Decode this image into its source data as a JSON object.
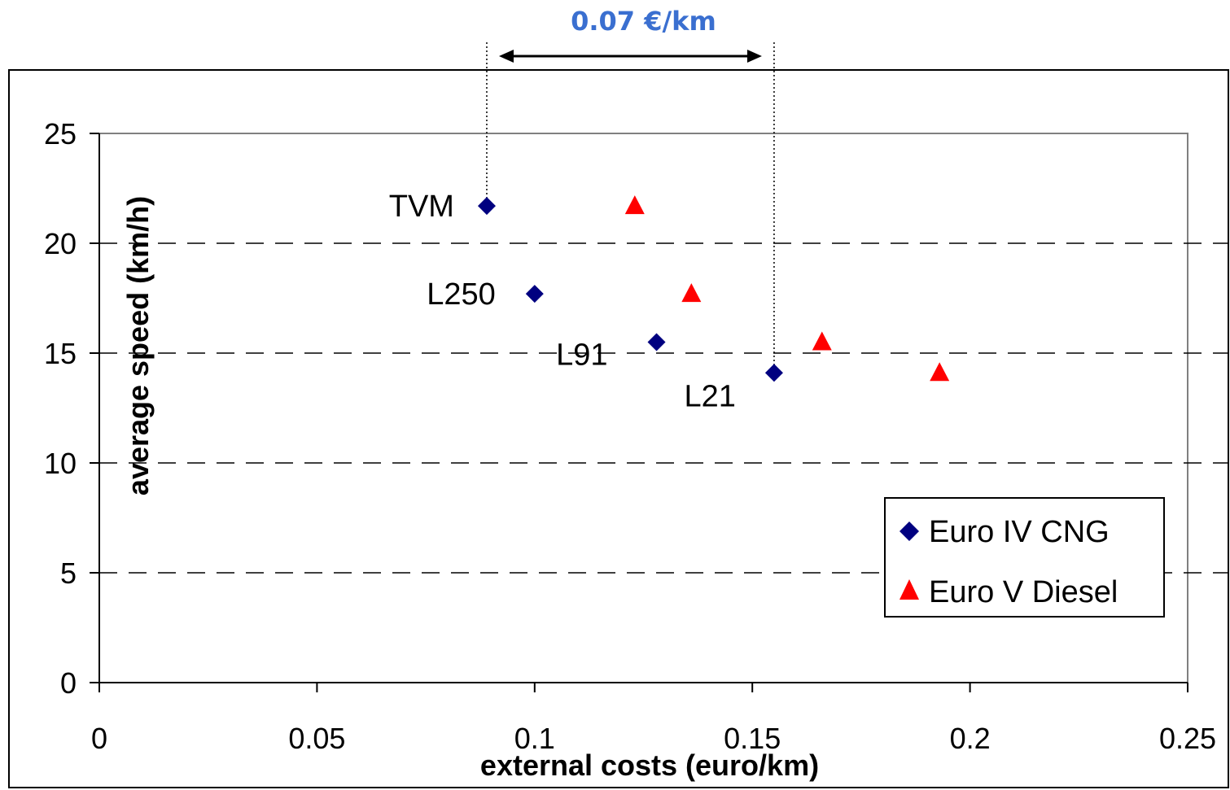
{
  "chart_data": {
    "type": "scatter",
    "xlabel": "external costs (euro/km)",
    "ylabel": "average speed (km/h)",
    "xlim": [
      0,
      0.25
    ],
    "ylim": [
      0,
      25
    ],
    "x_ticks": [
      "0",
      "0.05",
      "0.1",
      "0.15",
      "0.2",
      "0.25"
    ],
    "y_ticks": [
      "0",
      "5",
      "10",
      "15",
      "20",
      "25"
    ],
    "grid": "horizontal dashed",
    "legend_position": "bottom-right",
    "series": [
      {
        "name": "Euro IV CNG",
        "marker": "diamond",
        "color": "#000080",
        "points": [
          {
            "x": 0.089,
            "y": 21.7,
            "label": "TVM"
          },
          {
            "x": 0.1,
            "y": 17.7,
            "label": "L250"
          },
          {
            "x": 0.128,
            "y": 15.5,
            "label": "L91"
          },
          {
            "x": 0.155,
            "y": 14.1,
            "label": "L21"
          }
        ]
      },
      {
        "name": "Euro V Diesel",
        "marker": "triangle",
        "color": "#ff0000",
        "points": [
          {
            "x": 0.123,
            "y": 21.7
          },
          {
            "x": 0.136,
            "y": 17.7
          },
          {
            "x": 0.166,
            "y": 15.5
          },
          {
            "x": 0.193,
            "y": 14.1
          }
        ]
      }
    ],
    "annotation": {
      "text": "0.07 €/km",
      "x_from": 0.089,
      "x_to": 0.155
    }
  }
}
